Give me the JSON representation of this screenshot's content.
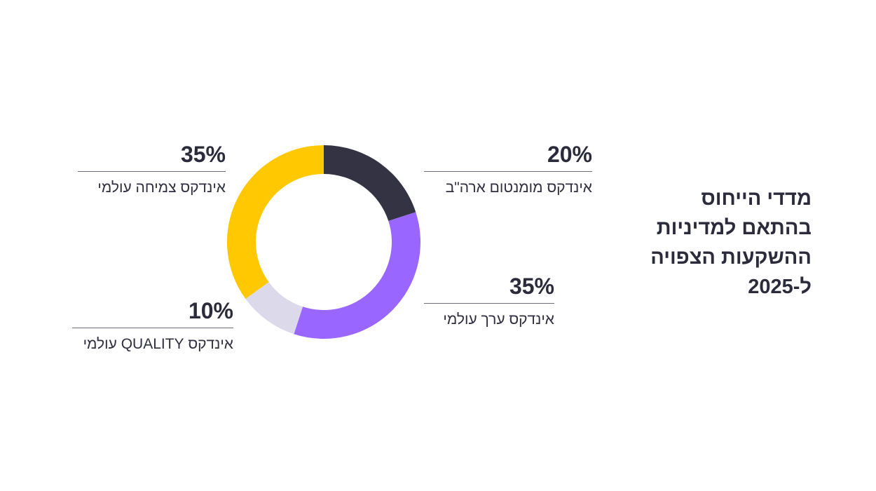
{
  "chart_data": {
    "type": "pie",
    "title": "מדדי הייחוס בהתאם למדיניות ההשקעות הצפויה ל-2025",
    "categories": [
      "אינדקס מומנטום ארה\"ב",
      "אינדקס ערך עולמי",
      "אינדקס QUALITY עולמי",
      "אינדקס צמיחה עולמי"
    ],
    "values": [
      20,
      35,
      10,
      35
    ],
    "value_labels": [
      "20%",
      "35%",
      "10%",
      "35%"
    ],
    "colors": [
      "#333344",
      "#9966ff",
      "#dcdaea",
      "#ffc800"
    ],
    "donut": true,
    "legend": "callouts"
  }
}
